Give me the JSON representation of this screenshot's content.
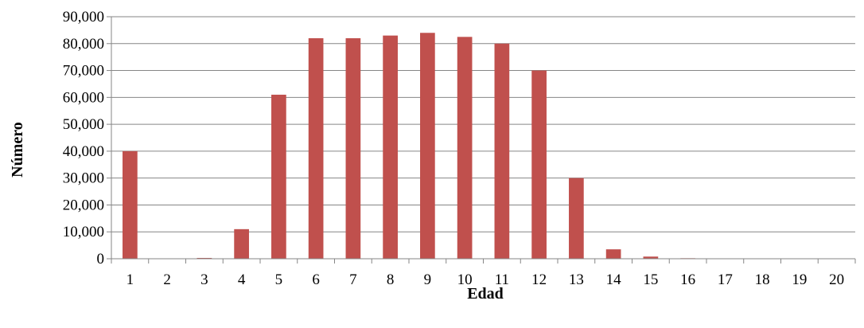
{
  "chart_data": {
    "type": "bar",
    "title": "",
    "xlabel": "Edad",
    "ylabel": "Número",
    "categories": [
      "1",
      "2",
      "3",
      "4",
      "5",
      "6",
      "7",
      "8",
      "9",
      "10",
      "11",
      "12",
      "13",
      "14",
      "15",
      "16",
      "17",
      "18",
      "19",
      "20"
    ],
    "series": [
      {
        "values": [
          40000,
          0,
          300,
          11000,
          61000,
          82000,
          82000,
          83000,
          84000,
          82500,
          80000,
          70000,
          30000,
          3500,
          800,
          200,
          150,
          100,
          50,
          0
        ],
        "color": "#c0504d"
      }
    ],
    "ylim": [
      0,
      90000
    ],
    "yticks": [
      "0",
      "10,000",
      "20,000",
      "30,000",
      "40,000",
      "50,000",
      "60,000",
      "70,000",
      "80,000",
      "90,000"
    ],
    "grid": true,
    "legend": "none",
    "gridline_color": "#868686",
    "axis_color": "#868686"
  }
}
